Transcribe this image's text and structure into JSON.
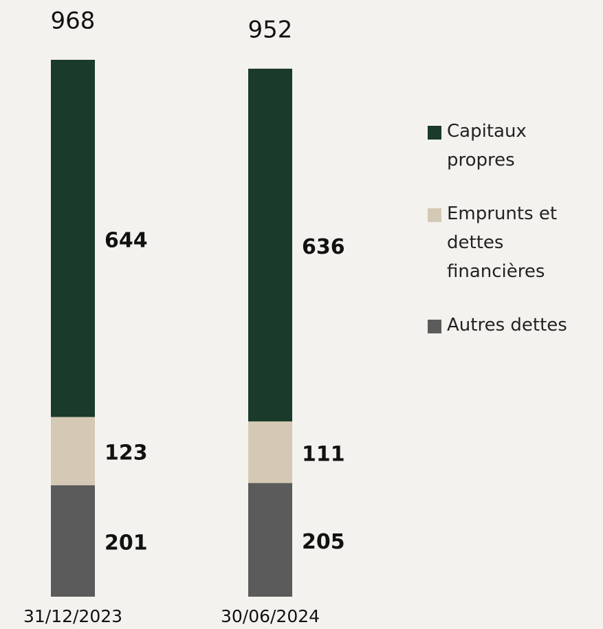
{
  "chart_data": {
    "type": "stacked_bar",
    "categories": [
      "31/12/2023",
      "30/06/2024"
    ],
    "totals": [
      968,
      952
    ],
    "series": [
      {
        "name": "Autres dettes",
        "color": "#5b5b5b",
        "values": [
          201,
          205
        ]
      },
      {
        "name": "Emprunts et dettes financières",
        "color": "#d4c9b4",
        "values": [
          123,
          111
        ]
      },
      {
        "name": "Capitaux propres",
        "color": "#1a3a2a",
        "values": [
          644,
          636
        ]
      }
    ],
    "legend": "right"
  }
}
